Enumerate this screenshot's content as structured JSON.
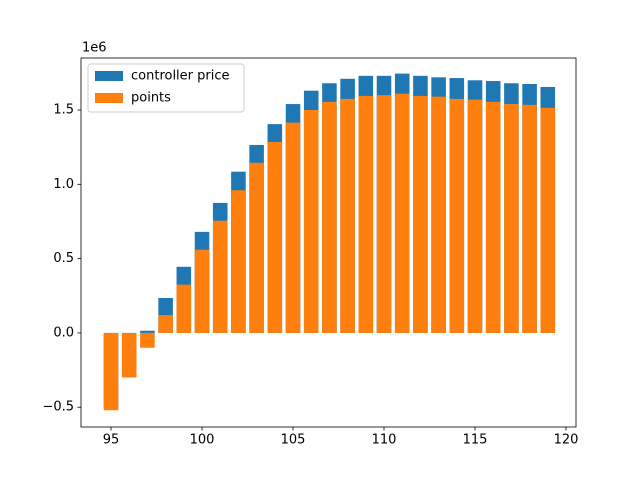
{
  "chart_data": {
    "type": "bar",
    "y_offset_label": "1e6",
    "x": [
      95,
      96,
      97,
      98,
      99,
      100,
      101,
      102,
      103,
      104,
      105,
      106,
      107,
      108,
      109,
      110,
      111,
      112,
      113,
      114,
      115,
      116,
      117,
      118,
      119
    ],
    "series": [
      {
        "name": "controller price",
        "color": "#1f77b4",
        "values": [
          -0.5,
          -0.28,
          0.015,
          0.235,
          0.445,
          0.68,
          0.875,
          1.085,
          1.265,
          1.405,
          1.54,
          1.63,
          1.68,
          1.71,
          1.73,
          1.73,
          1.745,
          1.73,
          1.72,
          1.715,
          1.7,
          1.695,
          1.68,
          1.675,
          1.655
        ]
      },
      {
        "name": "points",
        "color": "#ff7f0e",
        "values": [
          -0.52,
          -0.3,
          -0.1,
          0.12,
          0.325,
          0.56,
          0.755,
          0.96,
          1.145,
          1.285,
          1.415,
          1.5,
          1.555,
          1.575,
          1.595,
          1.6,
          1.61,
          1.595,
          1.59,
          1.575,
          1.57,
          1.555,
          1.54,
          1.535,
          1.515
        ]
      }
    ],
    "bar_width": 0.8,
    "xlim": [
      93.35,
      120.55
    ],
    "xticks": [
      95,
      100,
      105,
      110,
      115,
      120
    ],
    "ylim": [
      -0.633,
      1.85
    ],
    "yticks": [
      {
        "value": -0.5,
        "label": "−0.5"
      },
      {
        "value": 0,
        "label": "0.0"
      },
      {
        "value": 0.5,
        "label": "0.5"
      },
      {
        "value": 1,
        "label": "1.0"
      },
      {
        "value": 1.5,
        "label": "1.5"
      }
    ],
    "grid": false,
    "legend": "upper left"
  }
}
